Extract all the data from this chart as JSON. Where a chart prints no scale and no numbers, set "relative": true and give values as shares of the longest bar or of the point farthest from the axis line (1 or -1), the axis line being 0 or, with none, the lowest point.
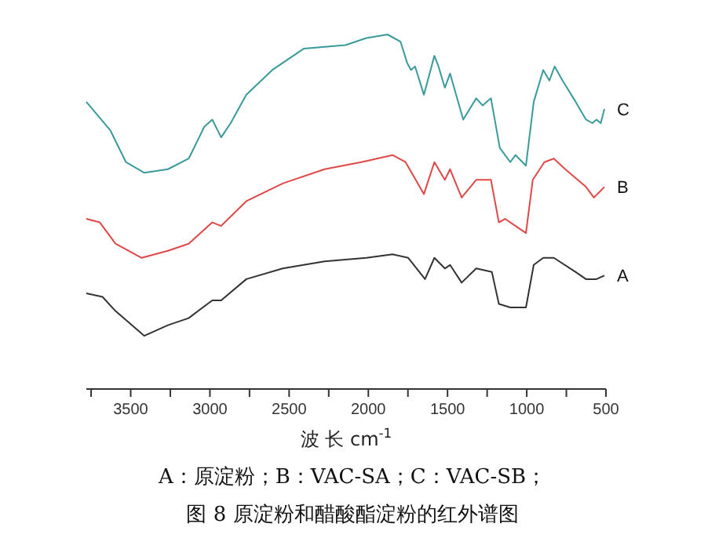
{
  "chart_data": {
    "type": "line",
    "relative": true,
    "xlabel": "波 长 cm$^{-1}$",
    "xlim": [
      3780,
      500
    ],
    "xticks": [
      {
        "value": 3750,
        "label": null
      },
      3500,
      {
        "value": 3250,
        "label": null
      },
      3000,
      {
        "value": 2750,
        "label": null
      },
      2500,
      {
        "value": 2250,
        "label": null
      },
      2000,
      {
        "value": 1750,
        "label": null
      },
      1500,
      {
        "value": 1250,
        "label": null
      },
      1000,
      {
        "value": 750,
        "label": null
      },
      500
    ],
    "tick_labels": "x",
    "grid": false,
    "legend": false,
    "marker": "none",
    "line_style": "solid",
    "annotations": [
      "A：原淀粉；B：VAC-SA；C：VAC-SB；",
      "图 8 原淀粉和醋酸酯淀粉的红外谱图"
    ],
    "series": [
      {
        "name": "C",
        "color": "#3a9a9a",
        "x": [
          3780,
          3629,
          3530,
          3414,
          3265,
          3134,
          3035,
          2985,
          2929,
          2869,
          2770,
          2606,
          2408,
          2144,
          2012,
          1879,
          1797,
          1755,
          1731,
          1705,
          1649,
          1583,
          1557,
          1517,
          1484,
          1401,
          1319,
          1279,
          1226,
          1170,
          1137,
          1104,
          1071,
          1005,
          956,
          896,
          857,
          824,
          774,
          691,
          626,
          586,
          560,
          533,
          510
        ],
        "values": [
          0.81,
          0.73,
          0.64,
          0.61,
          0.62,
          0.65,
          0.74,
          0.76,
          0.71,
          0.75,
          0.83,
          0.9,
          0.96,
          0.97,
          0.99,
          1,
          0.98,
          0.92,
          0.9,
          0.91,
          0.83,
          0.94,
          0.91,
          0.85,
          0.89,
          0.76,
          0.82,
          0.8,
          0.82,
          0.68,
          0.66,
          0.64,
          0.66,
          0.63,
          0.81,
          0.9,
          0.87,
          0.91,
          0.87,
          0.81,
          0.76,
          0.75,
          0.76,
          0.75,
          0.79
        ]
      },
      {
        "name": "B",
        "color": "#e04848",
        "x": [
          3780,
          3695,
          3596,
          3431,
          3265,
          3134,
          2985,
          2929,
          2770,
          2540,
          2276,
          2045,
          1847,
          1765,
          1649,
          1583,
          1517,
          1484,
          1411,
          1319,
          1226,
          1176,
          1137,
          1071,
          1005,
          962,
          889,
          829,
          757,
          626,
          576,
          510
        ],
        "values": [
          0.48,
          0.47,
          0.41,
          0.37,
          0.39,
          0.41,
          0.47,
          0.46,
          0.53,
          0.58,
          0.62,
          0.64,
          0.66,
          0.64,
          0.55,
          0.64,
          0.59,
          0.62,
          0.54,
          0.59,
          0.59,
          0.47,
          0.48,
          0.46,
          0.44,
          0.59,
          0.64,
          0.65,
          0.62,
          0.57,
          0.54,
          0.57
        ]
      },
      {
        "name": "A",
        "color": "#333333",
        "x": [
          3780,
          3678,
          3596,
          3414,
          3265,
          3134,
          2985,
          2929,
          2770,
          2540,
          2276,
          2012,
          1847,
          1748,
          1642,
          1583,
          1517,
          1484,
          1411,
          1319,
          1220,
          1176,
          1104,
          1005,
          956,
          896,
          829,
          691,
          626,
          560,
          510
        ],
        "values": [
          0.27,
          0.26,
          0.22,
          0.15,
          0.18,
          0.2,
          0.25,
          0.25,
          0.31,
          0.34,
          0.36,
          0.37,
          0.38,
          0.37,
          0.31,
          0.37,
          0.34,
          0.35,
          0.3,
          0.34,
          0.33,
          0.24,
          0.23,
          0.23,
          0.35,
          0.37,
          0.37,
          0.33,
          0.31,
          0.31,
          0.32
        ]
      }
    ]
  }
}
